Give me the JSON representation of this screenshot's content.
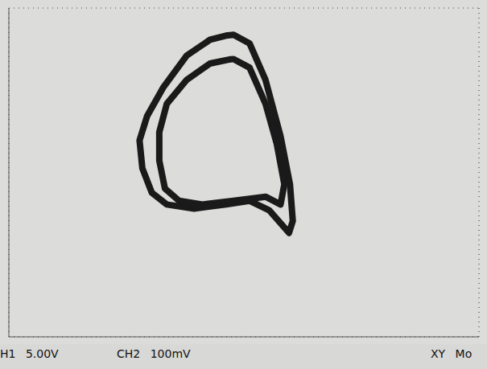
{
  "chart_data": {
    "type": "line",
    "annotations": [
      "H1 5.00V",
      "CH2 100mV",
      "XY Mo"
    ],
    "xlim": [
      -25,
      25
    ],
    "xticks": [
      -25,
      -20,
      -15,
      -10,
      -5,
      0,
      5,
      10,
      15,
      20,
      25
    ],
    "ylim": [
      -400,
      400
    ],
    "yticks": [
      -400,
      -300,
      -200,
      -100,
      0,
      100,
      200,
      300,
      400
    ],
    "grid": true,
    "tick_labels": false,
    "marker": "none",
    "line_style": "solid",
    "series": [
      {
        "color": "#1a1a1a",
        "x": [
          -1.9,
          -3.6,
          -6.1,
          -8.6,
          -10.3,
          -11.1,
          -10.8,
          -9.8,
          -8.2,
          -5.3,
          -1.9,
          0.6,
          2.7,
          4.8,
          5.2,
          4.9,
          3.9,
          2.3,
          0.6,
          -1.1,
          -1.9
        ],
        "values": [
          333,
          323,
          284,
          206,
          137,
          78,
          10,
          -49,
          -78,
          -88,
          -78,
          -69,
          -92,
          -147,
          -118,
          -29,
          88,
          225,
          314,
          335,
          333
        ]
      },
      {
        "color": "#1a1a1a",
        "x": [
          -1.5,
          -3.6,
          -6.1,
          -8.2,
          -9.0,
          -9.0,
          -8.4,
          -6.9,
          -4.4,
          -1.1,
          2.3,
          3.9,
          4.3,
          3.5,
          2.3,
          0.6,
          -1.1,
          -1.5
        ],
        "values": [
          275,
          265,
          225,
          167,
          98,
          29,
          -39,
          -69,
          -78,
          -69,
          -59,
          -78,
          -29,
          69,
          167,
          255,
          276,
          275
        ]
      }
    ]
  }
}
